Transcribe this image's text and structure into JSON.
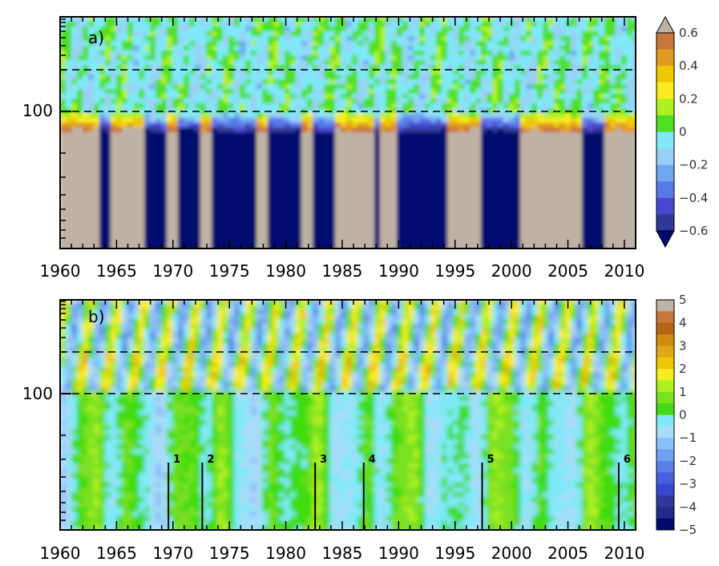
{
  "chart_data": [
    {
      "type": "heatmap",
      "panel_label": "a)",
      "x_ticks": [
        "1960",
        "1965",
        "1970",
        "1975",
        "1980",
        "1985",
        "1990",
        "1995",
        "2000",
        "2005",
        "2010"
      ],
      "y_ticks": [
        "100"
      ],
      "xlim": [
        1960,
        2011
      ],
      "dashed_levels": [
        "upper",
        "100"
      ],
      "colorbar": {
        "labels": [
          "0.6",
          "0.4",
          "0.2",
          "0",
          "−0.2",
          "−0.4",
          "−0.6"
        ],
        "levels": [
          0.6,
          0.5,
          0.4,
          0.3,
          0.2,
          0.1,
          0,
          -0.1,
          -0.2,
          -0.3,
          -0.4,
          -0.5,
          -0.6
        ],
        "colors": [
          "#c8763a",
          "#e09a20",
          "#f0c800",
          "#f8ec20",
          "#aef020",
          "#50e020",
          "#80e8f8",
          "#9ad0f8",
          "#70a8f0",
          "#5878e8",
          "#4848d0",
          "#303898"
        ],
        "extend_top_color": "#bfb2a4",
        "extend_bottom_color": "#000a6e"
      }
    },
    {
      "type": "heatmap",
      "panel_label": "b)",
      "x_ticks": [
        "1960",
        "1965",
        "1970",
        "1975",
        "1980",
        "1985",
        "1990",
        "1995",
        "2000",
        "2005",
        "2010"
      ],
      "y_ticks": [
        "100"
      ],
      "xlim": [
        1960,
        2011
      ],
      "dashed_levels": [
        "upper",
        "100"
      ],
      "events": [
        {
          "label": "1",
          "year": 1969.6
        },
        {
          "label": "2",
          "year": 1972.6
        },
        {
          "label": "3",
          "year": 1982.6
        },
        {
          "label": "4",
          "year": 1986.9
        },
        {
          "label": "5",
          "year": 1997.4
        },
        {
          "label": "6",
          "year": 2009.5
        }
      ],
      "colorbar": {
        "labels": [
          "5",
          "4",
          "3",
          "2",
          "1",
          "0",
          "−1",
          "−2",
          "−3",
          "−4",
          "−5"
        ],
        "levels": [
          5,
          4.5,
          4,
          3.5,
          3,
          2.5,
          2,
          1.5,
          1,
          0.5,
          0,
          -0.5,
          -1,
          -1.5,
          -2,
          -2.5,
          -3,
          -3.5,
          -4,
          -4.5,
          -5
        ],
        "colors": [
          "#bfb2a4",
          "#c8763a",
          "#b86418",
          "#d08a10",
          "#e0a818",
          "#f0c800",
          "#f8ec20",
          "#aef020",
          "#7ae020",
          "#40dc10",
          "#80e8f8",
          "#a8dcf8",
          "#8cc0f8",
          "#70a0f0",
          "#5880e8",
          "#4860e0",
          "#3848d0",
          "#3038a0",
          "#202a88",
          "#000a6e"
        ]
      }
    }
  ]
}
